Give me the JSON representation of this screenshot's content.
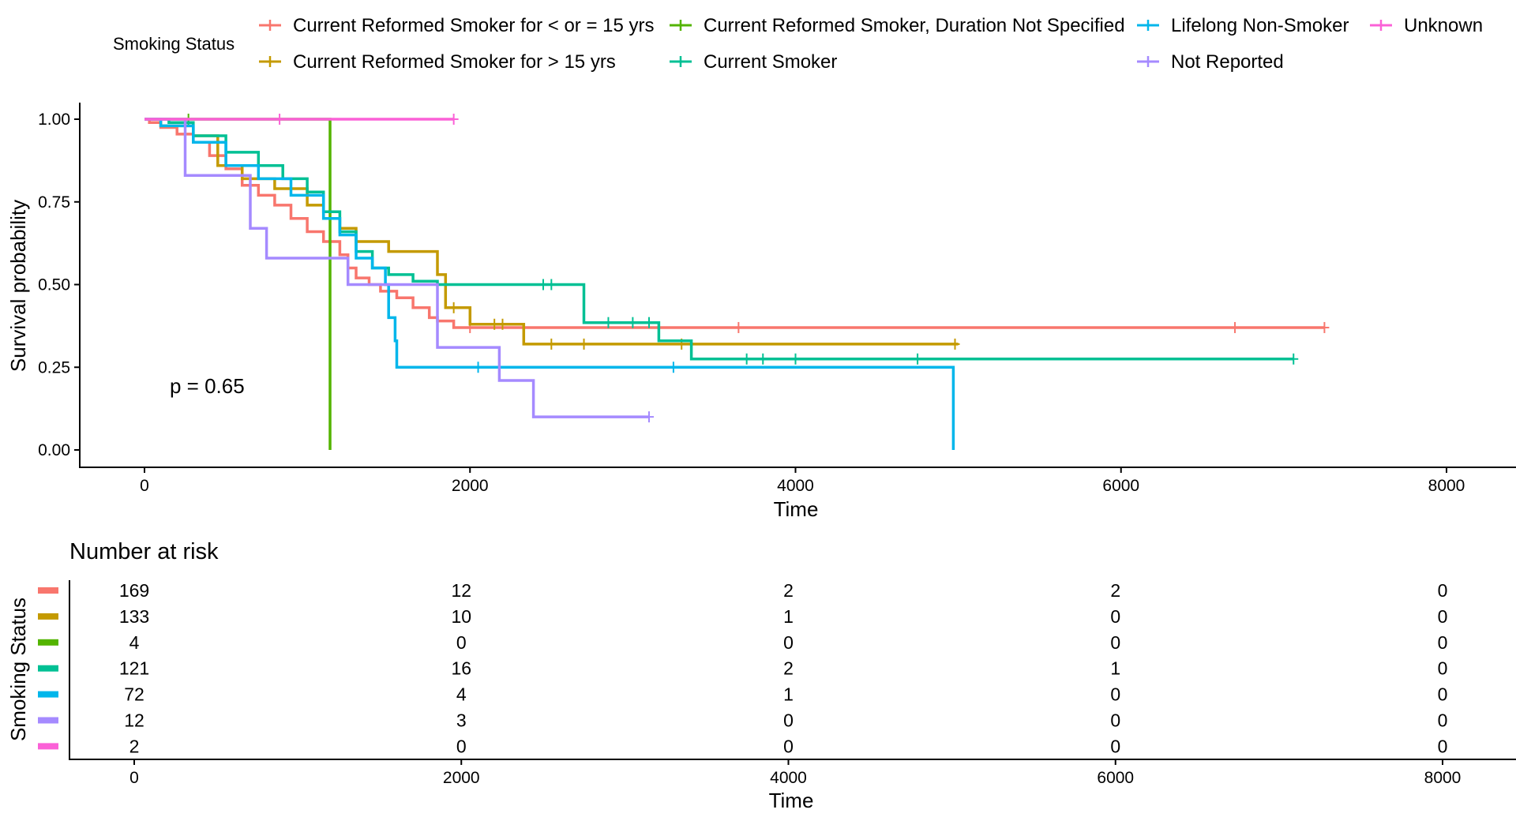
{
  "chart_data": [
    {
      "type": "line",
      "subtype": "kaplan-meier",
      "xlabel": "Time",
      "ylabel": "Survival probability",
      "xlim": [
        -700,
        8200
      ],
      "ylim": [
        -0.05,
        1.05
      ],
      "x_ticks": [
        0,
        2000,
        4000,
        6000,
        8000
      ],
      "y_ticks": [
        0,
        0.25,
        0.5,
        0.75,
        1.0
      ],
      "y_tick_labels": [
        "0.00",
        "0.25",
        "0.50",
        "0.75",
        "1.00"
      ],
      "grid": false,
      "annotation": "p = 0.65",
      "legend": {
        "title": "Smoking Status",
        "position": "top"
      },
      "series": [
        {
          "name": "Current Reformed Smoker for < or = 15 yrs",
          "color": "#F8766D",
          "points": [
            [
              0,
              1.0
            ],
            [
              30,
              0.99
            ],
            [
              100,
              0.975
            ],
            [
              200,
              0.955
            ],
            [
              300,
              0.93
            ],
            [
              400,
              0.89
            ],
            [
              500,
              0.85
            ],
            [
              600,
              0.8
            ],
            [
              700,
              0.77
            ],
            [
              800,
              0.74
            ],
            [
              900,
              0.7
            ],
            [
              1000,
              0.66
            ],
            [
              1100,
              0.63
            ],
            [
              1200,
              0.59
            ],
            [
              1250,
              0.55
            ],
            [
              1300,
              0.52
            ],
            [
              1380,
              0.5
            ],
            [
              1450,
              0.48
            ],
            [
              1550,
              0.46
            ],
            [
              1650,
              0.43
            ],
            [
              1750,
              0.4
            ],
            [
              1800,
              0.39
            ],
            [
              1900,
              0.37
            ],
            [
              7250,
              0.37
            ]
          ],
          "censor_times": [
            2000,
            3650,
            6700,
            7250
          ]
        },
        {
          "name": "Current Reformed Smoker for > 15 yrs",
          "color": "#C49A00",
          "points": [
            [
              0,
              1.0
            ],
            [
              100,
              0.98
            ],
            [
              300,
              0.95
            ],
            [
              450,
              0.86
            ],
            [
              600,
              0.82
            ],
            [
              800,
              0.79
            ],
            [
              1000,
              0.74
            ],
            [
              1100,
              0.7
            ],
            [
              1200,
              0.67
            ],
            [
              1300,
              0.63
            ],
            [
              1500,
              0.6
            ],
            [
              1800,
              0.53
            ],
            [
              1850,
              0.43
            ],
            [
              2000,
              0.38
            ],
            [
              2300,
              0.38
            ],
            [
              2330,
              0.32
            ],
            [
              5000,
              0.32
            ]
          ],
          "censor_times": [
            1900,
            2150,
            2200,
            2500,
            2700,
            3300,
            4980
          ]
        },
        {
          "name": "Current Reformed Smoker, Duration Not Specified",
          "color": "#53B400",
          "points": [
            [
              0,
              1.0
            ],
            [
              1140,
              1.0
            ],
            [
              1140,
              0.0
            ]
          ],
          "censor_times": [
            270
          ]
        },
        {
          "name": "Current Smoker",
          "color": "#00C094",
          "points": [
            [
              0,
              1.0
            ],
            [
              150,
              0.99
            ],
            [
              300,
              0.95
            ],
            [
              500,
              0.9
            ],
            [
              700,
              0.86
            ],
            [
              850,
              0.82
            ],
            [
              1000,
              0.78
            ],
            [
              1100,
              0.72
            ],
            [
              1200,
              0.66
            ],
            [
              1300,
              0.6
            ],
            [
              1400,
              0.55
            ],
            [
              1500,
              0.53
            ],
            [
              1650,
              0.51
            ],
            [
              1800,
              0.5
            ],
            [
              2630,
              0.5
            ],
            [
              2700,
              0.4
            ],
            [
              2700,
              0.385
            ],
            [
              3160,
              0.385
            ],
            [
              3160,
              0.33
            ],
            [
              3360,
              0.33
            ],
            [
              3360,
              0.275
            ],
            [
              7060,
              0.275
            ]
          ],
          "censor_times": [
            2450,
            2500,
            2850,
            3000,
            3100,
            3700,
            3800,
            4000,
            4750,
            7060
          ]
        },
        {
          "name": "Lifelong Non-Smoker",
          "color": "#00B6EB",
          "points": [
            [
              0,
              1.0
            ],
            [
              100,
              0.98
            ],
            [
              300,
              0.93
            ],
            [
              500,
              0.86
            ],
            [
              700,
              0.82
            ],
            [
              900,
              0.77
            ],
            [
              1100,
              0.7
            ],
            [
              1200,
              0.65
            ],
            [
              1300,
              0.58
            ],
            [
              1400,
              0.55
            ],
            [
              1480,
              0.5
            ],
            [
              1500,
              0.4
            ],
            [
              1540,
              0.33
            ],
            [
              1550,
              0.25
            ],
            [
              4970,
              0.25
            ],
            [
              4970,
              0.0
            ]
          ],
          "censor_times": [
            2050,
            3250
          ]
        },
        {
          "name": "Not Reported",
          "color": "#A58AFF",
          "points": [
            [
              0,
              1.0
            ],
            [
              250,
              1.0
            ],
            [
              250,
              0.83
            ],
            [
              650,
              0.83
            ],
            [
              650,
              0.67
            ],
            [
              750,
              0.67
            ],
            [
              750,
              0.58
            ],
            [
              1250,
              0.58
            ],
            [
              1250,
              0.5
            ],
            [
              1800,
              0.5
            ],
            [
              1800,
              0.31
            ],
            [
              2180,
              0.31
            ],
            [
              2180,
              0.21
            ],
            [
              2390,
              0.21
            ],
            [
              2390,
              0.1
            ],
            [
              3100,
              0.1
            ]
          ],
          "censor_times": [
            3100
          ]
        },
        {
          "name": "Unknown",
          "color": "#FB61D7",
          "points": [
            [
              0,
              1.0
            ],
            [
              1900,
              1.0
            ]
          ],
          "censor_times": [
            830,
            1900
          ]
        }
      ]
    },
    {
      "type": "table",
      "title": "Number at risk",
      "xlabel": "Time",
      "ylabel": "Smoking Status",
      "x_ticks": [
        0,
        2000,
        4000,
        6000,
        8000
      ],
      "columns": [
        0,
        2000,
        4000,
        6000,
        8000
      ],
      "rows": [
        {
          "color": "#F8766D",
          "values": [
            "169",
            "12",
            "2",
            "2",
            "0"
          ]
        },
        {
          "color": "#C49A00",
          "values": [
            "133",
            "10",
            "1",
            "0",
            "0"
          ]
        },
        {
          "color": "#53B400",
          "values": [
            "4",
            "0",
            "0",
            "0",
            "0"
          ]
        },
        {
          "color": "#00C094",
          "values": [
            "121",
            "16",
            "2",
            "1",
            "0"
          ]
        },
        {
          "color": "#00B6EB",
          "values": [
            "72",
            "4",
            "1",
            "0",
            "0"
          ]
        },
        {
          "color": "#A58AFF",
          "values": [
            "12",
            "3",
            "0",
            "0",
            "0"
          ]
        },
        {
          "color": "#FB61D7",
          "values": [
            "2",
            "0",
            "0",
            "0",
            "0"
          ]
        }
      ]
    }
  ]
}
